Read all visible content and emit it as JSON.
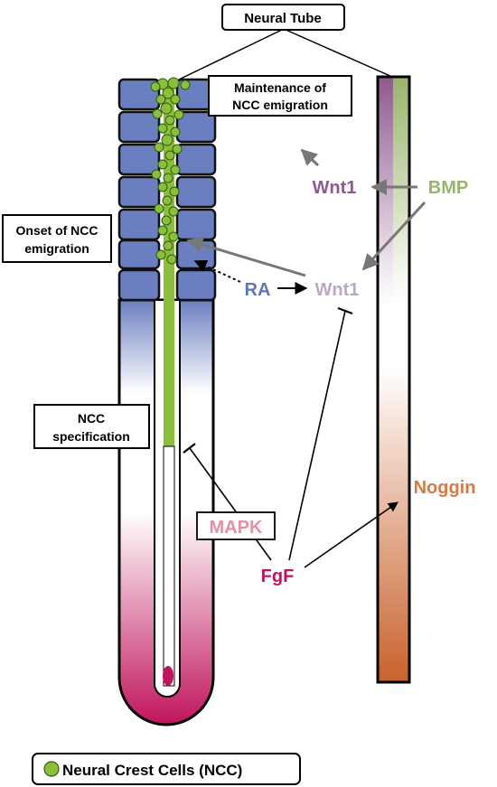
{
  "labels": {
    "neural_tube": "Neural Tube",
    "maintenance_line1": "Maintenance of",
    "maintenance_line2": "NCC emigration",
    "onset_line1": "Onset of NCC",
    "onset_line2": "emigration",
    "specification_line1": "NCC",
    "specification_line2": "specification",
    "legend": "Neural Crest Cells (NCC)"
  },
  "molecules": {
    "wnt1_upper": "Wnt1",
    "bmp": "BMP",
    "ra": "RA",
    "wnt1_lower": "Wnt1",
    "noggin": "Noggin",
    "mapk": "MAPK",
    "fgf": "FgF"
  },
  "colors": {
    "somite_blue": "#6b7fc0",
    "ncc_green": "#8bbf3a",
    "fgf_magenta": "#c0155c",
    "bmp_green": "#9ab46a",
    "wnt1_purple": "#8e5a8e",
    "wnt1_pale": "#b9a9c6",
    "ra_blue": "#5f76b8",
    "noggin_orange": "#d67a45",
    "mapk_pink": "#e68fa6"
  }
}
